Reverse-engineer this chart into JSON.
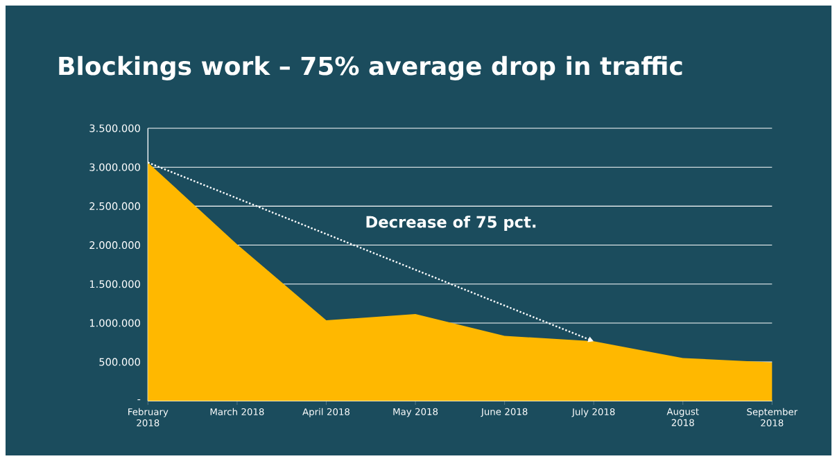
{
  "chart_data": {
    "type": "area",
    "title": "Blockings work – 75% average drop in traffic",
    "categories": [
      "February 2018",
      "March 2018",
      "April 2018",
      "May 2018",
      "June 2018",
      "July 2018",
      "August 2018",
      "September 2018"
    ],
    "values": [
      3060000,
      2010000,
      1035000,
      1115000,
      835000,
      765000,
      550000,
      495000
    ],
    "color": "#ffb800",
    "ylim": [
      0,
      3500000
    ],
    "yticks": [
      {
        "value": 0,
        "label": "-"
      },
      {
        "value": 500000,
        "label": "500.000"
      },
      {
        "value": 1000000,
        "label": "1.000.000"
      },
      {
        "value": 1500000,
        "label": "1.500.000"
      },
      {
        "value": 2000000,
        "label": "2.000.000"
      },
      {
        "value": 2500000,
        "label": "2.500.000"
      },
      {
        "value": 3000000,
        "label": "3.000.000"
      },
      {
        "value": 3500000,
        "label": "3.500.000"
      }
    ],
    "grid": "y",
    "annotations": [
      "Decrease of 75 pct."
    ]
  }
}
